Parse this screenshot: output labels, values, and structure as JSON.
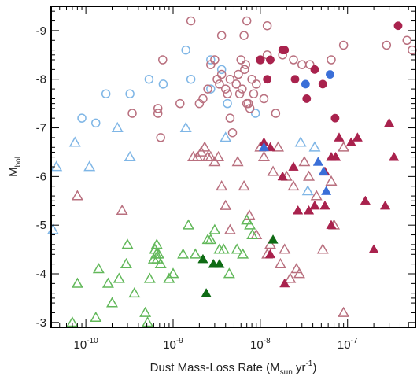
{
  "chart_data": {
    "type": "scatter",
    "xlabel": {
      "main": "Dust Mass-Loss Rate (M",
      "sub": "sun",
      "mid": " yr",
      "sup": "-1",
      "end": ")"
    },
    "ylabel": {
      "main": "M",
      "sub": "bol"
    },
    "x_scale": "log",
    "x_range": [
      4e-11,
      6e-07
    ],
    "y_range": [
      -9.5,
      -2.9
    ],
    "y_inverted": true,
    "x_ticks": [
      {
        "value": 1e-10,
        "base": "10",
        "exp": "-10"
      },
      {
        "value": 1e-09,
        "base": "10",
        "exp": "-9"
      },
      {
        "value": 1e-08,
        "base": "10",
        "exp": "-8"
      },
      {
        "value": 1e-07,
        "base": "10",
        "exp": "-7"
      }
    ],
    "y_ticks": [
      {
        "value": -9,
        "label": "-9"
      },
      {
        "value": -8,
        "label": "-8"
      },
      {
        "value": -7,
        "label": "-7"
      },
      {
        "value": -6,
        "label": "-6"
      },
      {
        "value": -5,
        "label": "-5"
      },
      {
        "value": -4,
        "label": "-4"
      },
      {
        "value": -3,
        "label": "-3"
      }
    ],
    "grid": false,
    "colors": {
      "light_blue": "#7fb6e6",
      "blue": "#3a6fd8",
      "pink": "#b9707f",
      "crimson": "#a9224d",
      "green": "#62b85a",
      "dark_green": "#0e6b14"
    },
    "series": [
      {
        "marker": "circle-open",
        "color": "light_blue",
        "points": [
          [
            9e-11,
            -7.2
          ],
          [
            1.3e-10,
            -7.1
          ],
          [
            1.7e-10,
            -7.7
          ],
          [
            3.2e-10,
            -7.7
          ],
          [
            5.3e-10,
            -8
          ],
          [
            7.7e-10,
            -7.9
          ],
          [
            1.6e-09,
            -8
          ],
          [
            2.7e-09,
            -8.4
          ],
          [
            2.7e-09,
            -7.8
          ],
          [
            3.6e-09,
            -8.2
          ],
          [
            4.2e-09,
            -7.5
          ],
          [
            8.8e-09,
            -7.3
          ],
          [
            1.4e-09,
            -8.6
          ]
        ]
      },
      {
        "marker": "circle-open",
        "color": "pink",
        "points": [
          [
            3.4e-10,
            -7.3
          ],
          [
            6.7e-10,
            -7.4
          ],
          [
            6.7e-10,
            -7.3
          ],
          [
            7.2e-10,
            -6.8
          ],
          [
            7.6e-10,
            -8.4
          ],
          [
            1.2e-09,
            -7.5
          ],
          [
            1.6e-09,
            -9.2
          ],
          [
            2e-09,
            -7.5
          ],
          [
            2.2e-09,
            -7.6
          ],
          [
            2.5e-09,
            -7.8
          ],
          [
            2.7e-09,
            -8.3
          ],
          [
            3e-09,
            -8.4
          ],
          [
            3.2e-09,
            -8
          ],
          [
            3.4e-09,
            -7.9
          ],
          [
            3.6e-09,
            -8.1
          ],
          [
            3.6e-09,
            -8.9
          ],
          [
            4e-09,
            -7.8
          ],
          [
            4.2e-09,
            -7.7
          ],
          [
            4.5e-09,
            -8
          ],
          [
            4.5e-09,
            -7.2
          ],
          [
            4.8e-09,
            -6.9
          ],
          [
            5.3e-09,
            -7.9
          ],
          [
            5.6e-09,
            -8.1
          ],
          [
            5.8e-09,
            -7.7
          ],
          [
            6e-09,
            -8.4
          ],
          [
            6.2e-09,
            -7.8
          ],
          [
            6.6e-09,
            -8.2
          ],
          [
            6.8e-09,
            -8.3
          ],
          [
            7e-09,
            -7.5
          ],
          [
            7.3e-09,
            -7.5
          ],
          [
            7.6e-09,
            -7.4
          ],
          [
            8e-09,
            -8
          ],
          [
            8.4e-09,
            -7.7
          ],
          [
            9e-09,
            -7.9
          ],
          [
            1e-08,
            -8.4
          ],
          [
            1.1e-08,
            -7.6
          ],
          [
            1.2e-08,
            -8.5
          ],
          [
            1.5e-08,
            -7.3
          ],
          [
            1.8e-08,
            -8.5
          ],
          [
            2.4e-08,
            -8.4
          ],
          [
            3e-08,
            -8.3
          ],
          [
            3.7e-08,
            -8.3
          ],
          [
            6.5e-08,
            -8.4
          ],
          [
            9e-08,
            -8.7
          ],
          [
            2.8e-07,
            -8.7
          ],
          [
            4.8e-07,
            -8.8
          ],
          [
            5.5e-07,
            -8.6
          ],
          [
            6.5e-09,
            -8.9
          ],
          [
            7e-09,
            -9.2
          ],
          [
            1.2e-08,
            -9.1
          ]
        ]
      },
      {
        "marker": "circle-filled",
        "color": "crimson",
        "points": [
          [
            1e-08,
            -8.4
          ],
          [
            1.2e-08,
            -8
          ],
          [
            1.3e-08,
            -8.4
          ],
          [
            1.8e-08,
            -8.6
          ],
          [
            1.9e-08,
            -8.6
          ],
          [
            2.5e-08,
            -8
          ],
          [
            3.4e-08,
            -7.6
          ],
          [
            4.2e-08,
            -8.2
          ],
          [
            5.2e-08,
            -7.9
          ],
          [
            7.2e-08,
            -7.2
          ],
          [
            3.8e-07,
            -9.1
          ]
        ]
      },
      {
        "marker": "circle-filled",
        "color": "blue",
        "points": [
          [
            3.3e-08,
            -7.9
          ],
          [
            6.3e-08,
            -8.1
          ]
        ]
      },
      {
        "marker": "triangle-open",
        "color": "light_blue",
        "points": [
          [
            4.2e-11,
            -4.9
          ],
          [
            4.6e-11,
            -6.2
          ],
          [
            7.5e-11,
            -6.7
          ],
          [
            1.1e-10,
            -6.2
          ],
          [
            2.3e-10,
            -7
          ],
          [
            3.2e-10,
            -6.4
          ],
          [
            1.4e-09,
            -7
          ],
          [
            4e-09,
            -6.8
          ],
          [
            2.9e-08,
            -6.7
          ],
          [
            3.5e-08,
            -5.7
          ],
          [
            4.2e-08,
            -6.6
          ]
        ]
      },
      {
        "marker": "triangle-open",
        "color": "pink",
        "points": [
          [
            8e-11,
            -5.6
          ],
          [
            2.6e-10,
            -5.3
          ],
          [
            1.7e-09,
            -6.4
          ],
          [
            1.9e-09,
            -6.4
          ],
          [
            2.1e-09,
            -6.5
          ],
          [
            2.3e-09,
            -6.6
          ],
          [
            2.5e-09,
            -6.4
          ],
          [
            2.7e-09,
            -6.4
          ],
          [
            3e-09,
            -6.3
          ],
          [
            3.3e-09,
            -6.4
          ],
          [
            3.6e-09,
            -5.8
          ],
          [
            4e-09,
            -5.4
          ],
          [
            4.5e-09,
            -4.9
          ],
          [
            5.5e-09,
            -6.3
          ],
          [
            6.5e-09,
            -5.8
          ],
          [
            7.5e-09,
            -5.2
          ],
          [
            9e-09,
            -4.8
          ],
          [
            1e-08,
            -6.6
          ],
          [
            1.1e-08,
            -6.4
          ],
          [
            1.2e-08,
            -4.4
          ],
          [
            1.3e-08,
            -4.6
          ],
          [
            1.4e-08,
            -6.1
          ],
          [
            1.6e-08,
            -6.6
          ],
          [
            1.7e-08,
            -4.2
          ],
          [
            1.9e-08,
            -4.5
          ],
          [
            2e-08,
            -6.0
          ],
          [
            2.2e-08,
            -3.9
          ],
          [
            2.4e-08,
            -5.8
          ],
          [
            2.6e-08,
            -4.1
          ],
          [
            2.8e-08,
            -4.0
          ],
          [
            3.2e-08,
            -6.3
          ],
          [
            3.6e-08,
            -6.0
          ],
          [
            4.4e-08,
            -5.6
          ],
          [
            5.2e-08,
            -4.5
          ],
          [
            6.5e-08,
            -5.9
          ],
          [
            7e-08,
            -5.0
          ],
          [
            9e-08,
            -3.2
          ],
          [
            9e-08,
            -6.6
          ]
        ]
      },
      {
        "marker": "triangle-filled",
        "color": "crimson",
        "points": [
          [
            1.1e-08,
            -6.7
          ],
          [
            1.3e-08,
            -6.6
          ],
          [
            1.8e-08,
            -6.0
          ],
          [
            2.4e-08,
            -6.2
          ],
          [
            2.7e-08,
            -5.3
          ],
          [
            3.6e-08,
            -5.3
          ],
          [
            4.2e-08,
            -5.4
          ],
          [
            5.5e-08,
            -5.4
          ],
          [
            6.5e-08,
            -6.4
          ],
          [
            7.3e-08,
            -6.4
          ],
          [
            8e-08,
            -6.8
          ],
          [
            1.1e-07,
            -6.7
          ],
          [
            1.3e-07,
            -6.8
          ],
          [
            1.6e-07,
            -5.5
          ],
          [
            2e-07,
            -4.5
          ],
          [
            2.7e-07,
            -5.4
          ],
          [
            3e-07,
            -7.1
          ],
          [
            3.4e-07,
            -6.4
          ],
          [
            6.5e-08,
            -5.0
          ],
          [
            1.3e-08,
            -4.4
          ],
          [
            1.9e-08,
            -3.8
          ],
          [
            5.5e-08,
            -6.1
          ]
        ]
      },
      {
        "marker": "triangle-filled",
        "color": "blue",
        "points": [
          [
            1.1e-08,
            -6.6
          ],
          [
            4.6e-08,
            -6.3
          ],
          [
            5.3e-08,
            -6.1
          ],
          [
            5.7e-08,
            -5.7
          ]
        ]
      },
      {
        "marker": "triangle-open",
        "color": "green",
        "points": [
          [
            7e-11,
            -3.0
          ],
          [
            8e-11,
            -3.8
          ],
          [
            1.3e-10,
            -3.1
          ],
          [
            1.4e-10,
            -4.1
          ],
          [
            1.8e-10,
            -3.8
          ],
          [
            2e-10,
            -3.4
          ],
          [
            2.4e-10,
            -3.9
          ],
          [
            2.9e-10,
            -4.2
          ],
          [
            3e-10,
            -4.6
          ],
          [
            3.6e-10,
            -3.6
          ],
          [
            4.8e-10,
            -3.2
          ],
          [
            5.1e-10,
            -3.0
          ],
          [
            5.4e-10,
            -3.9
          ],
          [
            6e-10,
            -4.3
          ],
          [
            6.2e-10,
            -4.5
          ],
          [
            6.4e-10,
            -4.4
          ],
          [
            6.5e-10,
            -4.6
          ],
          [
            6.6e-10,
            -4.3
          ],
          [
            6.8e-10,
            -4.4
          ],
          [
            7.2e-10,
            -4.2
          ],
          [
            9e-10,
            -3.9
          ],
          [
            1e-09,
            -4.0
          ],
          [
            1.3e-09,
            -4.4
          ],
          [
            1.5e-09,
            -5.0
          ],
          [
            1.8e-09,
            -4.4
          ],
          [
            2.5e-09,
            -4.7
          ],
          [
            2.7e-09,
            -4.7
          ],
          [
            3e-09,
            -4.9
          ],
          [
            3.4e-09,
            -4.5
          ],
          [
            3.8e-09,
            -4.5
          ],
          [
            4.4e-09,
            -4.0
          ],
          [
            5.4e-09,
            -4.5
          ],
          [
            6.3e-09,
            -4.4
          ],
          [
            7e-09,
            -5.1
          ],
          [
            7.6e-09,
            -5.0
          ],
          [
            8.1e-09,
            -4.8
          ]
        ]
      },
      {
        "marker": "triangle-filled",
        "color": "dark_green",
        "points": [
          [
            2.2e-09,
            -4.3
          ],
          [
            2.4e-09,
            -3.6
          ],
          [
            2.9e-09,
            -4.2
          ],
          [
            3.4e-09,
            -4.2
          ],
          [
            1.4e-08,
            -4.7
          ]
        ]
      }
    ]
  }
}
